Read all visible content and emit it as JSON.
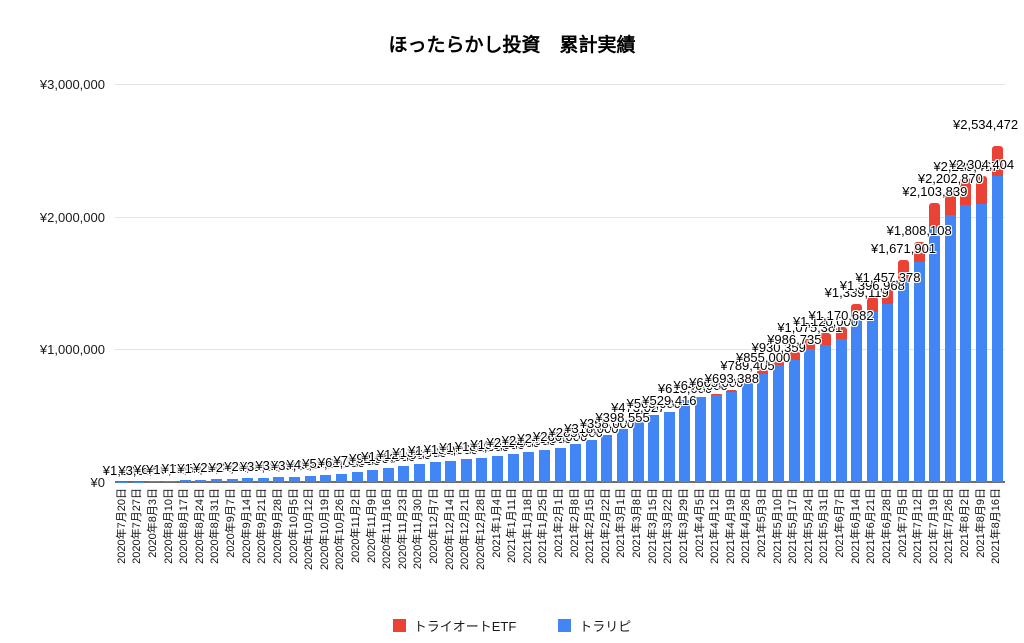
{
  "title": "ほったらかし投資　累計実績",
  "legend": {
    "items": [
      {
        "label": "トライオートETF",
        "color": "#EA4335"
      },
      {
        "label": "トラリピ",
        "color": "#4285F4"
      }
    ]
  },
  "chart_data": {
    "type": "bar",
    "stacked": true,
    "title": "ほったらかし投資　累計実績",
    "grid": true,
    "legend_position": "bottom",
    "currency_prefix": "¥",
    "y_axis": {
      "min": 0,
      "max": 3000000,
      "ticks": [
        "¥0",
        "¥1,000,000",
        "¥2,000,000",
        "¥3,000,000"
      ],
      "tick_values": [
        0,
        1000000,
        2000000,
        3000000
      ]
    },
    "categories": [
      "2020年7月20日",
      "2020年7月27日",
      "2020年8月3日",
      "2020年8月10日",
      "2020年8月17日",
      "2020年8月24日",
      "2020年8月31日",
      "2020年9月7日",
      "2020年9月14日",
      "2020年9月21日",
      "2020年9月28日",
      "2020年10月5日",
      "2020年10月12日",
      "2020年10月19日",
      "2020年10月26日",
      "2020年11月2日",
      "2020年11月9日",
      "2020年11月16日",
      "2020年11月23日",
      "2020年11月30日",
      "2020年12月7日",
      "2020年12月14日",
      "2020年12月21日",
      "2020年12月28日",
      "2021年1月4日",
      "2021年1月11日",
      "2021年1月18日",
      "2021年1月25日",
      "2021年2月1日",
      "2021年2月8日",
      "2021年2月15日",
      "2021年2月22日",
      "2021年3月1日",
      "2021年3月8日",
      "2021年3月15日",
      "2021年3月22日",
      "2021年3月29日",
      "2021年4月5日",
      "2021年4月12日",
      "2021年4月19日",
      "2021年4月26日",
      "2021年5月3日",
      "2021年5月10日",
      "2021年5月17日",
      "2021年5月24日",
      "2021年5月31日",
      "2021年6月7日",
      "2021年6月14日",
      "2021年6月21日",
      "2021年6月28日",
      "2021年7月5日",
      "2021年7月12日",
      "2021年7月19日",
      "2021年7月26日",
      "2021年8月2日",
      "2021年8月9日",
      "2021年8月16日"
    ],
    "series": [
      {
        "name": "トライオートETF",
        "color": "#EA4335",
        "values": [
          0,
          0,
          0,
          0,
          0,
          0,
          0,
          0,
          0,
          0,
          0,
          0,
          0,
          0,
          0,
          0,
          0,
          0,
          0,
          0,
          0,
          0,
          0,
          0,
          0,
          0,
          0,
          0,
          0,
          0,
          0,
          0,
          0,
          0,
          0,
          0,
          0,
          0,
          8000,
          14000,
          25000,
          38000,
          52000,
          66000,
          76000,
          84000,
          93000,
          104000,
          113000,
          119000,
          139000,
          153000,
          183000,
          193000,
          203000,
          212000,
          230068
        ]
      },
      {
        "name": "トラリピ",
        "color": "#4285F4",
        "values": [
          1200,
          3600,
          6500,
          10000,
          13500,
          17000,
          21000,
          24500,
          28000,
          31500,
          35000,
          39000,
          45000,
          52000,
          61000,
          78000,
          92000,
          106000,
          120000,
          134000,
          147000,
          159000,
          171000,
          183000,
          196000,
          211000,
          227000,
          243000,
          260000,
          285000,
          318000,
          358000,
          398555,
          473027,
          505000,
          529416,
          615000,
          640000,
          657000,
          679388,
          764405,
          817000,
          878359,
          920735,
          999381,
          1036000,
          1077682,
          1235119,
          1283968,
          1338378,
          1532901,
          1655108,
          1920839,
          2009870,
          2086467,
          2092404,
          2304404
        ]
      }
    ],
    "totals": [
      1200,
      3600,
      6500,
      10000,
      13500,
      17000,
      21000,
      24500,
      28000,
      31500,
      35000,
      39000,
      45000,
      52000,
      61000,
      78000,
      92000,
      106000,
      120000,
      134000,
      147000,
      159000,
      171000,
      183000,
      196000,
      211000,
      227000,
      243000,
      260000,
      285000,
      318000,
      358000,
      398555,
      473027,
      505000,
      529416,
      615000,
      640000,
      665000,
      693388,
      789405,
      855000,
      930359,
      986735,
      1075381,
      1120000,
      1170682,
      1339119,
      1396968,
      1457378,
      1671901,
      1808108,
      2103839,
      2202870,
      2289467,
      2304404,
      2534472
    ],
    "total_labels_shown": true,
    "notable_labels": [
      "¥398,555",
      "¥529,416",
      "¥693,388",
      "¥789,405",
      "¥986,735",
      "¥1,075,381",
      "¥1,170,682",
      "¥1,339,119",
      "¥1,396,968",
      "¥1,457,378",
      "¥1,671,901",
      "¥1,808,108",
      "¥2,103,839",
      "¥2,202,870",
      "¥2,304,404",
      "¥2,534,472"
    ]
  }
}
